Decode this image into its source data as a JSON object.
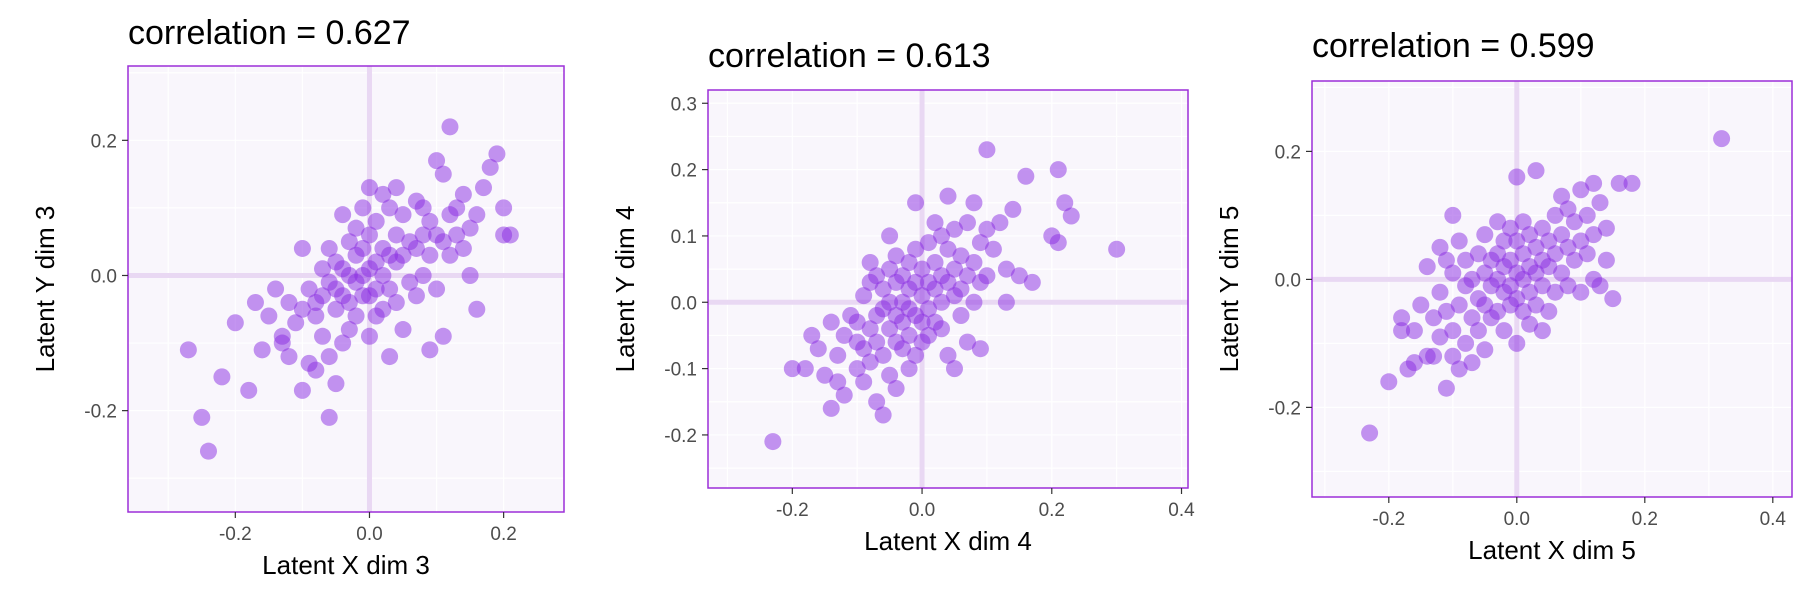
{
  "colors": {
    "panel_bg": "#f9f6fc",
    "panel_border": "#9c2fd8",
    "grid": "#ffffff",
    "zero_line": "#e9d8f3",
    "point_fill": "#8a2be2",
    "point_opacity": 0.5,
    "tick": "#333333"
  },
  "chart_data": [
    {
      "type": "scatter",
      "title": "correlation =  0.627",
      "xlabel": "Latent X dim 3",
      "ylabel": "Latent Y dim 3",
      "xlim": [
        -0.36,
        0.29
      ],
      "ylim": [
        -0.35,
        0.31
      ],
      "xticks": [
        -0.2,
        0.0,
        0.2
      ],
      "xtick_labels": [
        "-0.2",
        "0.0",
        "0.2"
      ],
      "yticks": [
        -0.2,
        0.0,
        0.2
      ],
      "ytick_labels": [
        "-0.2",
        "0.0",
        "0.2"
      ],
      "grid": true,
      "points": [
        [
          -0.27,
          -0.11
        ],
        [
          -0.25,
          -0.21
        ],
        [
          -0.24,
          -0.26
        ],
        [
          -0.22,
          -0.15
        ],
        [
          -0.2,
          -0.07
        ],
        [
          -0.18,
          -0.17
        ],
        [
          -0.17,
          -0.04
        ],
        [
          -0.16,
          -0.11
        ],
        [
          -0.15,
          -0.06
        ],
        [
          -0.14,
          -0.02
        ],
        [
          -0.13,
          -0.09
        ],
        [
          -0.13,
          -0.1
        ],
        [
          -0.12,
          -0.04
        ],
        [
          -0.12,
          -0.12
        ],
        [
          -0.11,
          -0.07
        ],
        [
          -0.1,
          0.04
        ],
        [
          -0.1,
          -0.05
        ],
        [
          -0.1,
          -0.17
        ],
        [
          -0.09,
          -0.02
        ],
        [
          -0.09,
          -0.13
        ],
        [
          -0.08,
          -0.04
        ],
        [
          -0.08,
          -0.06
        ],
        [
          -0.08,
          -0.14
        ],
        [
          -0.07,
          0.01
        ],
        [
          -0.07,
          -0.03
        ],
        [
          -0.07,
          -0.09
        ],
        [
          -0.06,
          0.04
        ],
        [
          -0.06,
          -0.01
        ],
        [
          -0.06,
          -0.12
        ],
        [
          -0.06,
          -0.21
        ],
        [
          -0.05,
          0.02
        ],
        [
          -0.05,
          -0.02
        ],
        [
          -0.05,
          -0.05
        ],
        [
          -0.05,
          -0.16
        ],
        [
          -0.04,
          0.09
        ],
        [
          -0.04,
          0.01
        ],
        [
          -0.04,
          -0.03
        ],
        [
          -0.04,
          -0.1
        ],
        [
          -0.03,
          0.05
        ],
        [
          -0.03,
          0.0
        ],
        [
          -0.03,
          -0.04
        ],
        [
          -0.03,
          -0.08
        ],
        [
          -0.02,
          0.07
        ],
        [
          -0.02,
          0.03
        ],
        [
          -0.02,
          -0.01
        ],
        [
          -0.02,
          -0.06
        ],
        [
          -0.01,
          0.1
        ],
        [
          -0.01,
          0.04
        ],
        [
          -0.01,
          0.0
        ],
        [
          -0.01,
          -0.03
        ],
        [
          0.0,
          0.13
        ],
        [
          0.0,
          0.06
        ],
        [
          0.0,
          0.01
        ],
        [
          0.0,
          -0.03
        ],
        [
          0.0,
          -0.09
        ],
        [
          0.01,
          0.08
        ],
        [
          0.01,
          0.02
        ],
        [
          0.01,
          -0.02
        ],
        [
          0.01,
          -0.06
        ],
        [
          0.02,
          0.12
        ],
        [
          0.02,
          0.04
        ],
        [
          0.02,
          0.0
        ],
        [
          0.02,
          -0.05
        ],
        [
          0.03,
          0.1
        ],
        [
          0.03,
          0.03
        ],
        [
          0.03,
          -0.02
        ],
        [
          0.03,
          -0.12
        ],
        [
          0.04,
          0.13
        ],
        [
          0.04,
          0.06
        ],
        [
          0.04,
          0.02
        ],
        [
          0.04,
          -0.04
        ],
        [
          0.05,
          0.09
        ],
        [
          0.05,
          0.03
        ],
        [
          0.05,
          -0.08
        ],
        [
          0.06,
          0.05
        ],
        [
          0.06,
          -0.01
        ],
        [
          0.07,
          0.11
        ],
        [
          0.07,
          0.04
        ],
        [
          0.07,
          -0.03
        ],
        [
          0.08,
          0.1
        ],
        [
          0.08,
          0.06
        ],
        [
          0.08,
          0.0
        ],
        [
          0.09,
          0.08
        ],
        [
          0.09,
          0.03
        ],
        [
          0.09,
          -0.11
        ],
        [
          0.1,
          0.17
        ],
        [
          0.1,
          0.06
        ],
        [
          0.1,
          -0.02
        ],
        [
          0.11,
          0.15
        ],
        [
          0.11,
          0.05
        ],
        [
          0.11,
          -0.09
        ],
        [
          0.12,
          0.22
        ],
        [
          0.12,
          0.09
        ],
        [
          0.12,
          0.03
        ],
        [
          0.13,
          0.1
        ],
        [
          0.13,
          0.06
        ],
        [
          0.14,
          0.12
        ],
        [
          0.14,
          0.04
        ],
        [
          0.15,
          0.07
        ],
        [
          0.15,
          0.0
        ],
        [
          0.16,
          0.09
        ],
        [
          0.16,
          -0.05
        ],
        [
          0.17,
          0.13
        ],
        [
          0.18,
          0.16
        ],
        [
          0.19,
          0.18
        ],
        [
          0.2,
          0.1
        ],
        [
          0.2,
          0.06
        ],
        [
          0.21,
          0.06
        ]
      ]
    },
    {
      "type": "scatter",
      "title": "correlation =  0.613",
      "xlabel": "Latent X dim 4",
      "ylabel": "Latent Y dim 4",
      "xlim": [
        -0.33,
        0.41
      ],
      "ylim": [
        -0.28,
        0.32
      ],
      "xticks": [
        -0.2,
        0.0,
        0.2,
        0.4
      ],
      "xtick_labels": [
        "-0.2",
        "0.0",
        "0.2",
        "0.4"
      ],
      "yticks": [
        -0.2,
        -0.1,
        0.0,
        0.1,
        0.2,
        0.3
      ],
      "ytick_labels": [
        "-0.2",
        "-0.1",
        "0.0",
        "0.1",
        "0.2",
        "0.3"
      ],
      "grid": true,
      "points": [
        [
          -0.23,
          -0.21
        ],
        [
          -0.2,
          -0.1
        ],
        [
          -0.18,
          -0.1
        ],
        [
          -0.17,
          -0.05
        ],
        [
          -0.16,
          -0.07
        ],
        [
          -0.15,
          -0.11
        ],
        [
          -0.14,
          -0.03
        ],
        [
          -0.14,
          -0.16
        ],
        [
          -0.13,
          -0.08
        ],
        [
          -0.13,
          -0.12
        ],
        [
          -0.12,
          -0.05
        ],
        [
          -0.12,
          -0.14
        ],
        [
          -0.11,
          -0.02
        ],
        [
          -0.1,
          -0.06
        ],
        [
          -0.1,
          -0.1
        ],
        [
          -0.1,
          -0.03
        ],
        [
          -0.09,
          0.01
        ],
        [
          -0.09,
          -0.07
        ],
        [
          -0.09,
          -0.12
        ],
        [
          -0.08,
          0.06
        ],
        [
          -0.08,
          0.03
        ],
        [
          -0.08,
          -0.04
        ],
        [
          -0.08,
          -0.09
        ],
        [
          -0.07,
          0.04
        ],
        [
          -0.07,
          -0.02
        ],
        [
          -0.07,
          -0.06
        ],
        [
          -0.07,
          -0.15
        ],
        [
          -0.06,
          0.02
        ],
        [
          -0.06,
          -0.01
        ],
        [
          -0.06,
          -0.08
        ],
        [
          -0.06,
          -0.17
        ],
        [
          -0.05,
          0.1
        ],
        [
          -0.05,
          0.05
        ],
        [
          -0.05,
          0.0
        ],
        [
          -0.05,
          -0.04
        ],
        [
          -0.05,
          -0.11
        ],
        [
          -0.04,
          0.07
        ],
        [
          -0.04,
          0.03
        ],
        [
          -0.04,
          -0.02
        ],
        [
          -0.04,
          -0.06
        ],
        [
          -0.04,
          -0.13
        ],
        [
          -0.03,
          0.04
        ],
        [
          -0.03,
          0.0
        ],
        [
          -0.03,
          -0.03
        ],
        [
          -0.03,
          -0.07
        ],
        [
          -0.02,
          0.06
        ],
        [
          -0.02,
          0.02
        ],
        [
          -0.02,
          -0.01
        ],
        [
          -0.02,
          -0.05
        ],
        [
          -0.02,
          -0.1
        ],
        [
          -0.01,
          0.15
        ],
        [
          -0.01,
          0.08
        ],
        [
          -0.01,
          0.03
        ],
        [
          -0.01,
          -0.02
        ],
        [
          -0.01,
          -0.08
        ],
        [
          0.0,
          0.05
        ],
        [
          0.0,
          0.01
        ],
        [
          0.0,
          -0.03
        ],
        [
          0.0,
          -0.06
        ],
        [
          0.01,
          0.09
        ],
        [
          0.01,
          0.03
        ],
        [
          0.01,
          -0.01
        ],
        [
          0.01,
          -0.05
        ],
        [
          0.02,
          0.12
        ],
        [
          0.02,
          0.06
        ],
        [
          0.02,
          0.02
        ],
        [
          0.02,
          -0.03
        ],
        [
          0.03,
          0.1
        ],
        [
          0.03,
          0.04
        ],
        [
          0.03,
          0.0
        ],
        [
          0.03,
          -0.04
        ],
        [
          0.04,
          0.16
        ],
        [
          0.04,
          0.08
        ],
        [
          0.04,
          0.03
        ],
        [
          0.04,
          -0.08
        ],
        [
          0.05,
          0.11
        ],
        [
          0.05,
          0.05
        ],
        [
          0.05,
          0.01
        ],
        [
          0.05,
          -0.1
        ],
        [
          0.06,
          0.07
        ],
        [
          0.06,
          0.02
        ],
        [
          0.06,
          -0.02
        ],
        [
          0.07,
          0.12
        ],
        [
          0.07,
          0.04
        ],
        [
          0.07,
          -0.06
        ],
        [
          0.08,
          0.15
        ],
        [
          0.08,
          0.06
        ],
        [
          0.08,
          0.0
        ],
        [
          0.09,
          0.09
        ],
        [
          0.09,
          0.03
        ],
        [
          0.09,
          -0.07
        ],
        [
          0.1,
          0.23
        ],
        [
          0.1,
          0.11
        ],
        [
          0.1,
          0.04
        ],
        [
          0.11,
          0.08
        ],
        [
          0.12,
          0.12
        ],
        [
          0.13,
          0.05
        ],
        [
          0.13,
          0.0
        ],
        [
          0.14,
          0.14
        ],
        [
          0.15,
          0.04
        ],
        [
          0.16,
          0.19
        ],
        [
          0.17,
          0.03
        ],
        [
          0.2,
          0.1
        ],
        [
          0.21,
          0.09
        ],
        [
          0.21,
          0.2
        ],
        [
          0.22,
          0.15
        ],
        [
          0.23,
          0.13
        ],
        [
          0.3,
          0.08
        ]
      ]
    },
    {
      "type": "scatter",
      "title": "correlation =  0.599",
      "xlabel": "Latent X dim 5",
      "ylabel": "Latent Y dim 5",
      "xlim": [
        -0.32,
        0.43
      ],
      "ylim": [
        -0.34,
        0.31
      ],
      "xticks": [
        -0.2,
        0.0,
        0.2,
        0.4
      ],
      "xtick_labels": [
        "-0.2",
        "0.0",
        "0.2",
        "0.4"
      ],
      "yticks": [
        -0.2,
        0.0,
        0.2
      ],
      "ytick_labels": [
        "-0.2",
        "0.0",
        "0.2"
      ],
      "grid": true,
      "points": [
        [
          -0.23,
          -0.24
        ],
        [
          -0.2,
          -0.16
        ],
        [
          -0.18,
          -0.06
        ],
        [
          -0.18,
          -0.08
        ],
        [
          -0.17,
          -0.14
        ],
        [
          -0.16,
          -0.13
        ],
        [
          -0.16,
          -0.08
        ],
        [
          -0.15,
          -0.04
        ],
        [
          -0.14,
          -0.12
        ],
        [
          -0.14,
          0.02
        ],
        [
          -0.13,
          -0.06
        ],
        [
          -0.13,
          -0.12
        ],
        [
          -0.12,
          -0.02
        ],
        [
          -0.12,
          0.05
        ],
        [
          -0.12,
          -0.09
        ],
        [
          -0.11,
          -0.17
        ],
        [
          -0.11,
          -0.05
        ],
        [
          -0.11,
          0.03
        ],
        [
          -0.1,
          -0.12
        ],
        [
          -0.1,
          -0.08
        ],
        [
          -0.1,
          0.01
        ],
        [
          -0.1,
          0.1
        ],
        [
          -0.09,
          -0.04
        ],
        [
          -0.09,
          -0.14
        ],
        [
          -0.09,
          0.06
        ],
        [
          -0.08,
          -0.01
        ],
        [
          -0.08,
          -0.1
        ],
        [
          -0.08,
          0.03
        ],
        [
          -0.07,
          -0.06
        ],
        [
          -0.07,
          0.0
        ],
        [
          -0.07,
          -0.13
        ],
        [
          -0.06,
          0.04
        ],
        [
          -0.06,
          -0.03
        ],
        [
          -0.06,
          -0.08
        ],
        [
          -0.05,
          0.07
        ],
        [
          -0.05,
          0.01
        ],
        [
          -0.05,
          -0.04
        ],
        [
          -0.05,
          -0.11
        ],
        [
          -0.04,
          0.03
        ],
        [
          -0.04,
          -0.01
        ],
        [
          -0.04,
          -0.06
        ],
        [
          -0.03,
          0.09
        ],
        [
          -0.03,
          0.04
        ],
        [
          -0.03,
          0.0
        ],
        [
          -0.03,
          -0.05
        ],
        [
          -0.02,
          0.06
        ],
        [
          -0.02,
          0.02
        ],
        [
          -0.02,
          -0.02
        ],
        [
          -0.02,
          -0.08
        ],
        [
          -0.01,
          0.08
        ],
        [
          -0.01,
          0.03
        ],
        [
          -0.01,
          -0.01
        ],
        [
          -0.01,
          -0.04
        ],
        [
          0.0,
          0.16
        ],
        [
          0.0,
          0.06
        ],
        [
          0.0,
          0.01
        ],
        [
          0.0,
          -0.03
        ],
        [
          0.0,
          -0.1
        ],
        [
          0.01,
          0.09
        ],
        [
          0.01,
          0.04
        ],
        [
          0.01,
          0.0
        ],
        [
          0.01,
          -0.05
        ],
        [
          0.02,
          0.07
        ],
        [
          0.02,
          0.02
        ],
        [
          0.02,
          -0.02
        ],
        [
          0.02,
          -0.07
        ],
        [
          0.03,
          0.17
        ],
        [
          0.03,
          0.05
        ],
        [
          0.03,
          0.01
        ],
        [
          0.03,
          -0.04
        ],
        [
          0.04,
          0.08
        ],
        [
          0.04,
          0.03
        ],
        [
          0.04,
          -0.01
        ],
        [
          0.04,
          -0.08
        ],
        [
          0.05,
          0.06
        ],
        [
          0.05,
          0.02
        ],
        [
          0.05,
          -0.05
        ],
        [
          0.06,
          0.1
        ],
        [
          0.06,
          0.04
        ],
        [
          0.06,
          -0.02
        ],
        [
          0.07,
          0.13
        ],
        [
          0.07,
          0.07
        ],
        [
          0.07,
          0.01
        ],
        [
          0.08,
          0.11
        ],
        [
          0.08,
          0.05
        ],
        [
          0.08,
          -0.01
        ],
        [
          0.09,
          0.09
        ],
        [
          0.09,
          0.03
        ],
        [
          0.1,
          0.14
        ],
        [
          0.1,
          0.06
        ],
        [
          0.1,
          -0.02
        ],
        [
          0.11,
          0.1
        ],
        [
          0.11,
          0.04
        ],
        [
          0.12,
          0.15
        ],
        [
          0.12,
          0.07
        ],
        [
          0.12,
          0.0
        ],
        [
          0.13,
          0.12
        ],
        [
          0.13,
          -0.01
        ],
        [
          0.14,
          0.08
        ],
        [
          0.14,
          0.03
        ],
        [
          0.15,
          -0.03
        ],
        [
          0.16,
          0.15
        ],
        [
          0.18,
          0.15
        ],
        [
          0.32,
          0.22
        ]
      ]
    }
  ]
}
